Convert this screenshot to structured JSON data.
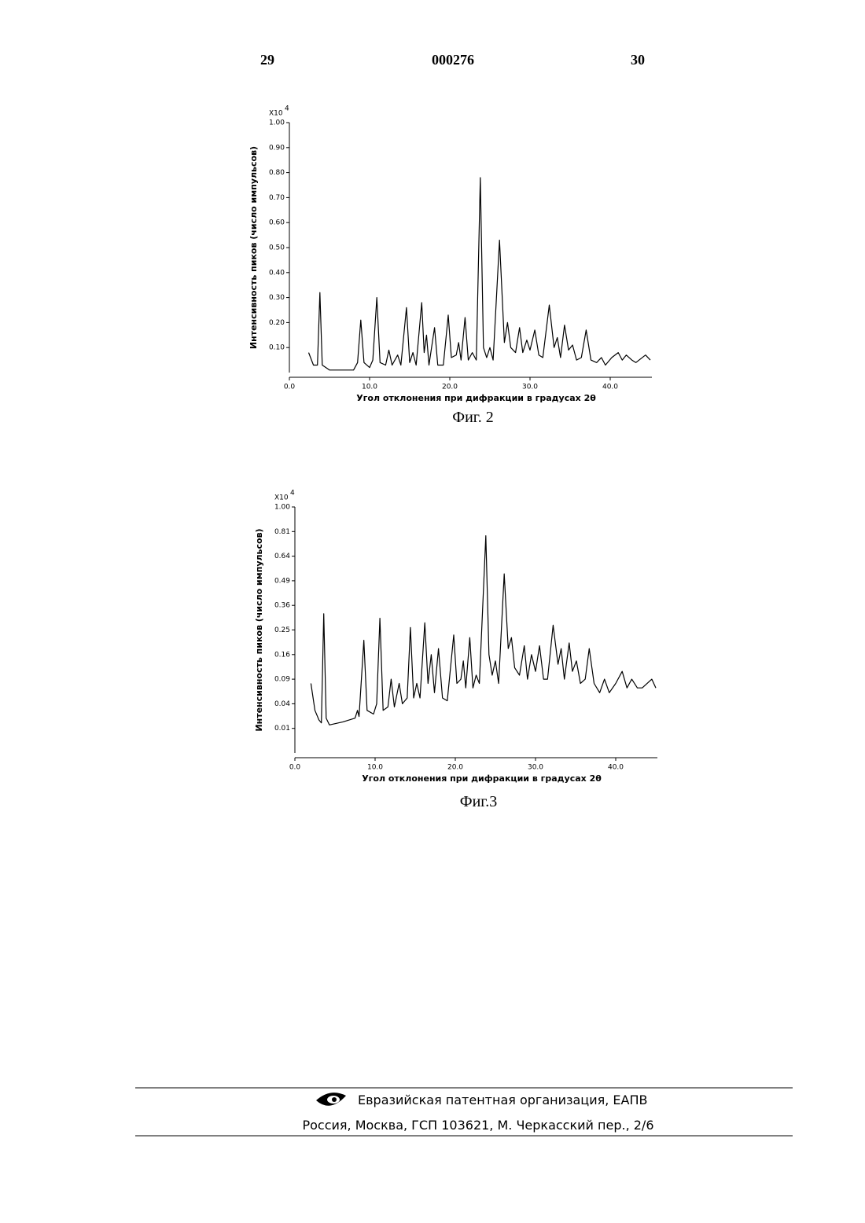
{
  "header": {
    "left": "29",
    "center": "000276",
    "right": "30"
  },
  "chart_data": [
    {
      "type": "line",
      "y_multiplier": "X10",
      "y_multiplier_exp": "4",
      "ylabel": "Интенсивность пиков (число импульсов)",
      "xlabel": "Угол отклонения при дифракции в градусах 2θ",
      "caption": "Фиг. 2",
      "color": "#000000",
      "xlim": [
        0,
        45
      ],
      "ylim": [
        0,
        1
      ],
      "xticks": [
        {
          "value": 0,
          "label": "0.0"
        },
        {
          "value": 10,
          "label": "10.0"
        },
        {
          "value": 20,
          "label": "20.0"
        },
        {
          "value": 30,
          "label": "30.0"
        },
        {
          "value": 40,
          "label": "40.0"
        }
      ],
      "yticks": [
        {
          "value": 0.1,
          "label": "0.10"
        },
        {
          "value": 0.2,
          "label": "0.20"
        },
        {
          "value": 0.3,
          "label": "0.30"
        },
        {
          "value": 0.4,
          "label": "0.40"
        },
        {
          "value": 0.5,
          "label": "0.50"
        },
        {
          "value": 0.6,
          "label": "0.60"
        },
        {
          "value": 0.7,
          "label": "0.70"
        },
        {
          "value": 0.8,
          "label": "0.80"
        },
        {
          "value": 0.9,
          "label": "0.90"
        },
        {
          "value": 1,
          "label": "1.00"
        }
      ],
      "x": [
        2.4,
        3.0,
        3.5,
        3.8,
        4.1,
        5.0,
        8.0,
        8.5,
        8.9,
        9.3,
        10.0,
        10.4,
        10.9,
        11.3,
        12.0,
        12.4,
        12.8,
        13.5,
        13.9,
        14.6,
        15.0,
        15.4,
        15.8,
        16.5,
        16.8,
        17.1,
        17.4,
        18.1,
        18.5,
        19.2,
        19.8,
        20.2,
        20.8,
        21.1,
        21.4,
        21.9,
        22.3,
        22.8,
        23.3,
        23.8,
        24.2,
        24.6,
        25.0,
        25.4,
        26.2,
        26.8,
        27.2,
        27.6,
        28.2,
        28.7,
        29.1,
        29.6,
        30.0,
        30.6,
        31.1,
        31.6,
        32.4,
        33.0,
        33.4,
        33.8,
        34.3,
        34.8,
        35.3,
        35.8,
        36.4,
        37.0,
        37.6,
        38.3,
        38.9,
        39.4,
        40.2,
        41.0,
        41.5,
        42.0,
        42.7,
        43.2,
        44.4,
        45.0
      ],
      "values": [
        0.08,
        0.03,
        0.03,
        0.32,
        0.03,
        0.01,
        0.01,
        0.04,
        0.21,
        0.04,
        0.02,
        0.05,
        0.3,
        0.04,
        0.03,
        0.09,
        0.03,
        0.07,
        0.03,
        0.26,
        0.04,
        0.08,
        0.03,
        0.28,
        0.08,
        0.15,
        0.03,
        0.18,
        0.03,
        0.03,
        0.23,
        0.06,
        0.07,
        0.12,
        0.05,
        0.22,
        0.05,
        0.08,
        0.05,
        0.78,
        0.1,
        0.06,
        0.1,
        0.05,
        0.53,
        0.12,
        0.2,
        0.1,
        0.08,
        0.18,
        0.08,
        0.13,
        0.09,
        0.17,
        0.07,
        0.06,
        0.27,
        0.1,
        0.14,
        0.06,
        0.19,
        0.09,
        0.11,
        0.05,
        0.06,
        0.17,
        0.05,
        0.04,
        0.06,
        0.03,
        0.06,
        0.08,
        0.05,
        0.07,
        0.05,
        0.04,
        0.07,
        0.05
      ]
    },
    {
      "type": "line",
      "y_multiplier": "X10",
      "y_multiplier_exp": "4",
      "ylabel": "Интенсивность пиков (число импульсов)",
      "xlabel": "Угол отклонения при дифракции в градусах 2θ",
      "caption": "Фиг.3",
      "color": "#000000",
      "yscale": "sqrt",
      "xlim": [
        0,
        45
      ],
      "ylim": [
        0,
        1
      ],
      "xticks": [
        {
          "value": 0,
          "label": "0.0"
        },
        {
          "value": 10,
          "label": "10.0"
        },
        {
          "value": 20,
          "label": "20.0"
        },
        {
          "value": 30,
          "label": "30.0"
        },
        {
          "value": 40,
          "label": "40.0"
        }
      ],
      "yticks": [
        0.01,
        0.04,
        0.09,
        0.16,
        0.25,
        0.36,
        0.49,
        0.64,
        0.81,
        {
          "value": 1,
          "label": "1.00"
        }
      ],
      "x": [
        2.0,
        2.5,
        3.0,
        3.3,
        3.6,
        3.9,
        4.3,
        6.0,
        7.5,
        7.8,
        8.0,
        8.6,
        9.0,
        9.8,
        10.2,
        10.6,
        11.0,
        11.6,
        12.0,
        12.4,
        13.0,
        13.4,
        14.0,
        14.4,
        14.8,
        15.2,
        15.6,
        16.2,
        16.6,
        17.0,
        17.4,
        17.9,
        18.4,
        19.0,
        19.8,
        20.2,
        20.7,
        21.0,
        21.3,
        21.8,
        22.2,
        22.6,
        23.0,
        23.8,
        24.2,
        24.6,
        25.0,
        25.4,
        26.1,
        26.6,
        27.0,
        27.4,
        28.0,
        28.6,
        29.0,
        29.5,
        30.0,
        30.5,
        31.0,
        31.5,
        32.2,
        32.8,
        33.2,
        33.6,
        34.2,
        34.6,
        35.1,
        35.6,
        36.2,
        36.7,
        37.3,
        38.0,
        38.6,
        39.2,
        40.0,
        40.8,
        41.4,
        42.0,
        42.7,
        43.3,
        44.5,
        45.0
      ],
      "values": [
        0.08,
        0.03,
        0.018,
        0.015,
        0.32,
        0.02,
        0.013,
        0.016,
        0.02,
        0.03,
        0.022,
        0.21,
        0.03,
        0.025,
        0.04,
        0.3,
        0.03,
        0.035,
        0.09,
        0.035,
        0.08,
        0.04,
        0.05,
        0.26,
        0.05,
        0.08,
        0.05,
        0.28,
        0.08,
        0.16,
        0.06,
        0.18,
        0.05,
        0.045,
        0.23,
        0.08,
        0.09,
        0.14,
        0.07,
        0.22,
        0.07,
        0.1,
        0.08,
        0.78,
        0.16,
        0.1,
        0.14,
        0.08,
        0.53,
        0.18,
        0.22,
        0.12,
        0.1,
        0.19,
        0.09,
        0.16,
        0.11,
        0.19,
        0.09,
        0.09,
        0.27,
        0.13,
        0.18,
        0.09,
        0.2,
        0.11,
        0.14,
        0.08,
        0.09,
        0.18,
        0.08,
        0.06,
        0.09,
        0.06,
        0.08,
        0.11,
        0.07,
        0.09,
        0.07,
        0.07,
        0.09,
        0.07
      ]
    }
  ],
  "footer": {
    "organization": "Евразийская патентная организация, ЕАПВ",
    "address": "Россия, Москва, ГСП 103621, М. Черкасский пер., 2/6"
  }
}
